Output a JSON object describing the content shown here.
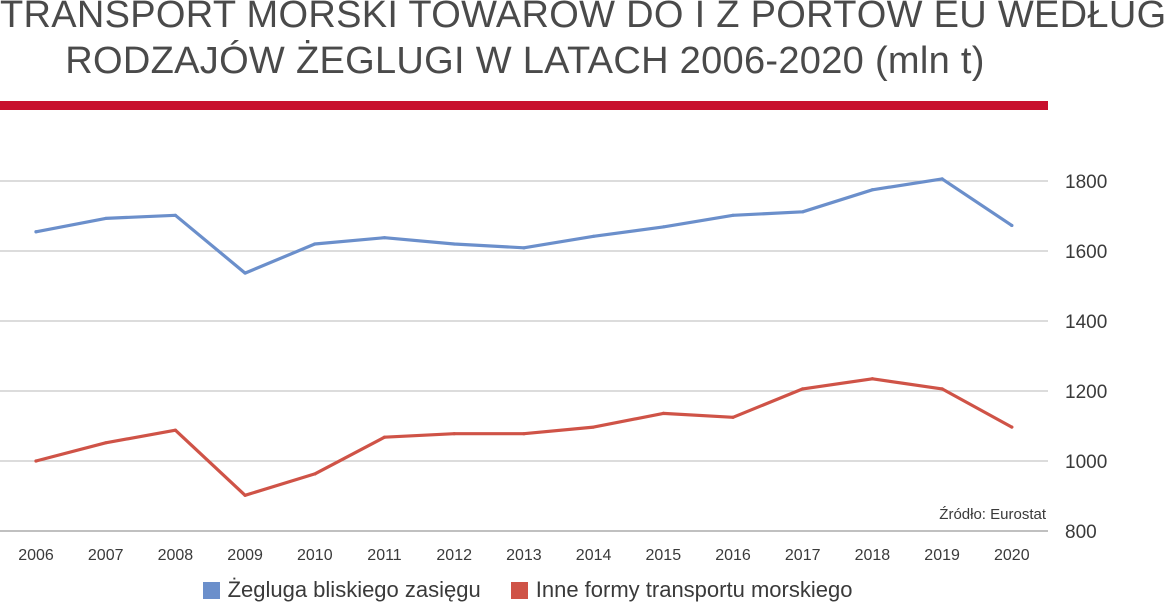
{
  "title_lines": [
    "TRANSPORT MORSKI TOWARÓW DO I Z PORTÓW EU WEDŁUG",
    "RODZAJÓW ŻEGLUGI W LATACH 2006-2020 (mln t)"
  ],
  "source": "Źródło: Eurostat",
  "colors": {
    "accent_rule": "#c8102e",
    "grid": "#c8c8c8"
  },
  "chart_data": {
    "type": "line",
    "title": "TRANSPORT MORSKI TOWARÓW DO I Z PORTÓW EU WEDŁUG RODZAJÓW ŻEGLUGI W LATACH 2006-2020 (mln t)",
    "xlabel": "",
    "ylabel": "",
    "x": [
      "2006",
      "2007",
      "2008",
      "2009",
      "2010",
      "2011",
      "2012",
      "2013",
      "2014",
      "2015",
      "2016",
      "2017",
      "2018",
      "2019",
      "2020"
    ],
    "ylim": [
      800,
      1800
    ],
    "yticks": [
      800,
      1000,
      1200,
      1400,
      1600,
      1800
    ],
    "y_axis_side": "right",
    "grid": true,
    "legend_position": "bottom",
    "series": [
      {
        "name": "Żegluga bliskiego zasięgu",
        "color": "#6b8fcb",
        "values": [
          1655,
          1693,
          1702,
          1537,
          1620,
          1638,
          1620,
          1609,
          1642,
          1669,
          1702,
          1712,
          1775,
          1806,
          1673
        ]
      },
      {
        "name": "Inne formy transportu morskiego",
        "color": "#cf5347",
        "values": [
          1000,
          1052,
          1088,
          902,
          963,
          1068,
          1078,
          1078,
          1097,
          1136,
          1125,
          1206,
          1235,
          1206,
          1097
        ]
      }
    ]
  }
}
